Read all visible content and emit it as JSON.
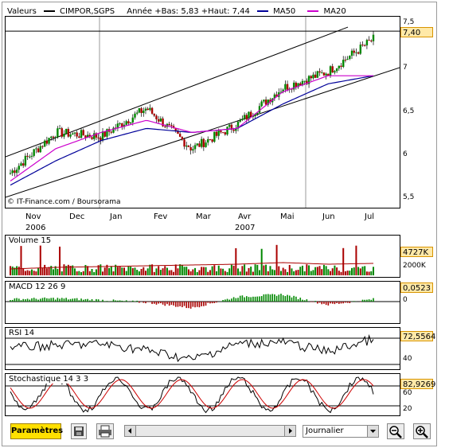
{
  "main": {
    "legend": {
      "valeurs": "Valeurs",
      "ticker": "CIMPOR,SGPS",
      "range": "Année +Bas: 5,83 +Haut: 7,44",
      "ma50": "MA50",
      "ma20": "MA20"
    },
    "colors": {
      "ma50": "#000099",
      "ma20": "#cc00cc",
      "up": "#008800",
      "down": "#aa0000"
    },
    "last_value": "7,40",
    "credit": "© IT-Finance.com / Boursorama",
    "y_ticks": [
      "7,5",
      "7",
      "6,5",
      "6",
      "5,5"
    ],
    "months": [
      "Nov",
      "Dec",
      "Jan",
      "Fev",
      "Mar",
      "Avr",
      "Mai",
      "Jun",
      "Jul"
    ],
    "years": [
      "2006",
      "2007"
    ]
  },
  "volume": {
    "title": "Volume 15",
    "last_value": "4727K",
    "ticks": [
      "2000K"
    ]
  },
  "macd": {
    "title": "MACD 12 26 9",
    "last_value": "0,0523",
    "ticks": [
      "0"
    ]
  },
  "rsi": {
    "title": "RSI 14",
    "last_value": "72,5564",
    "ticks": [
      "40"
    ]
  },
  "stoch": {
    "title": "Stochastique 14 3 3",
    "last_value": "82,9269",
    "ticks": [
      "60",
      "20"
    ]
  },
  "toolbar": {
    "params_label": "Paramètres",
    "period": "Journalier"
  },
  "icons": [
    "save-icon",
    "print-icon",
    "scroll-left-icon",
    "scroll-right-icon",
    "dropdown-arrow-icon",
    "zoom-out-icon",
    "zoom-in-icon"
  ],
  "chart_data": {
    "type": "line",
    "title": "CIMPOR,SGPS",
    "x": [
      "Nov",
      "Dec",
      "Jan",
      "Fev",
      "Mar",
      "Avr",
      "Mai",
      "Jun",
      "Jul"
    ],
    "series": [
      {
        "name": "CIMPOR,SGPS",
        "values": [
          5.75,
          6.25,
          6.2,
          6.55,
          6.05,
          6.35,
          6.8,
          7.0,
          7.4
        ]
      },
      {
        "name": "MA20",
        "values": [
          5.65,
          6.05,
          6.25,
          6.4,
          6.25,
          6.3,
          6.75,
          6.95,
          6.95
        ]
      },
      {
        "name": "MA50",
        "values": [
          5.6,
          5.9,
          6.15,
          6.3,
          6.25,
          6.3,
          6.6,
          6.85,
          6.95
        ]
      }
    ],
    "ylim": [
      5.4,
      7.6
    ],
    "year_labels": [
      "2006",
      "2007"
    ]
  }
}
